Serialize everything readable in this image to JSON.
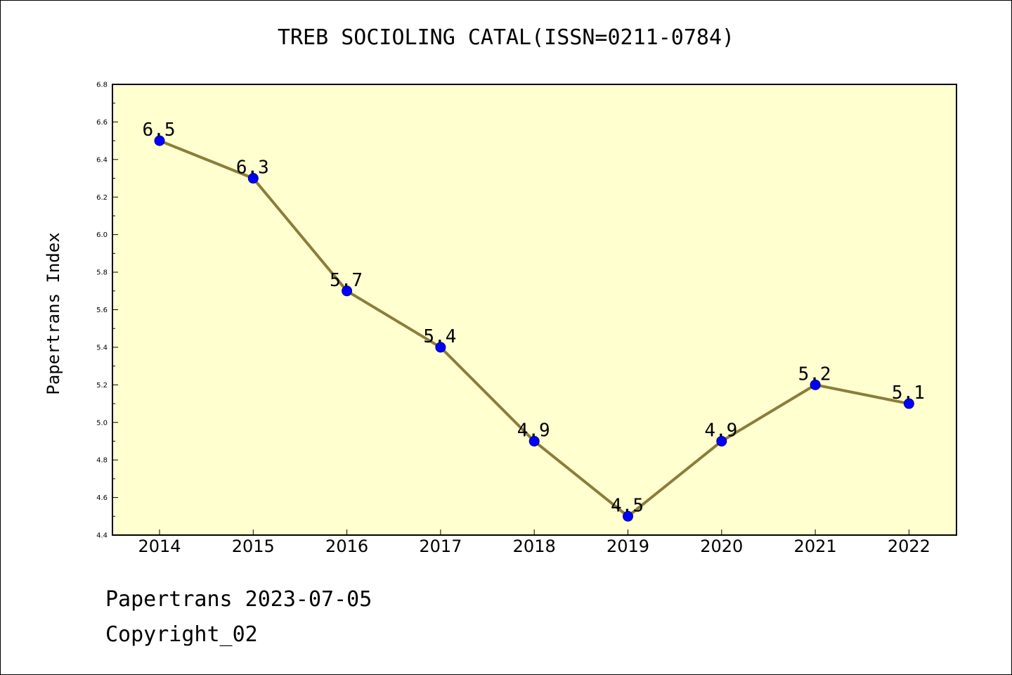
{
  "chart_data": {
    "type": "line",
    "title": "TREB SOCIOLING CATAL(ISSN=0211-0784)",
    "xlabel": "",
    "ylabel": "Papertrans Index",
    "categories": [
      "2014",
      "2015",
      "2016",
      "2017",
      "2018",
      "2019",
      "2020",
      "2021",
      "2022"
    ],
    "series": [
      {
        "values": [
          6.5,
          6.3,
          5.7,
          5.4,
          4.9,
          4.5,
          4.9,
          5.2,
          5.1
        ],
        "labels": [
          "6.5",
          "6.3",
          "5.7",
          "5.4",
          "4.9",
          "4.5",
          "4.9",
          "5.2",
          "5.1"
        ],
        "line_color": "#8b7d3a",
        "marker_color": "#0000ff"
      }
    ],
    "ylim": [
      4.4,
      6.8
    ],
    "yticks": [
      "4.4",
      "4.6",
      "4.8",
      "5.0",
      "5.2",
      "5.4",
      "5.6",
      "5.8",
      "6.0",
      "6.2",
      "6.4",
      "6.6",
      "6.8"
    ],
    "plot_background": "#ffffd0",
    "grid": false,
    "legend": "none"
  },
  "footer": {
    "line1": "Papertrans 2023-07-05",
    "line2": "Copyright_02"
  }
}
